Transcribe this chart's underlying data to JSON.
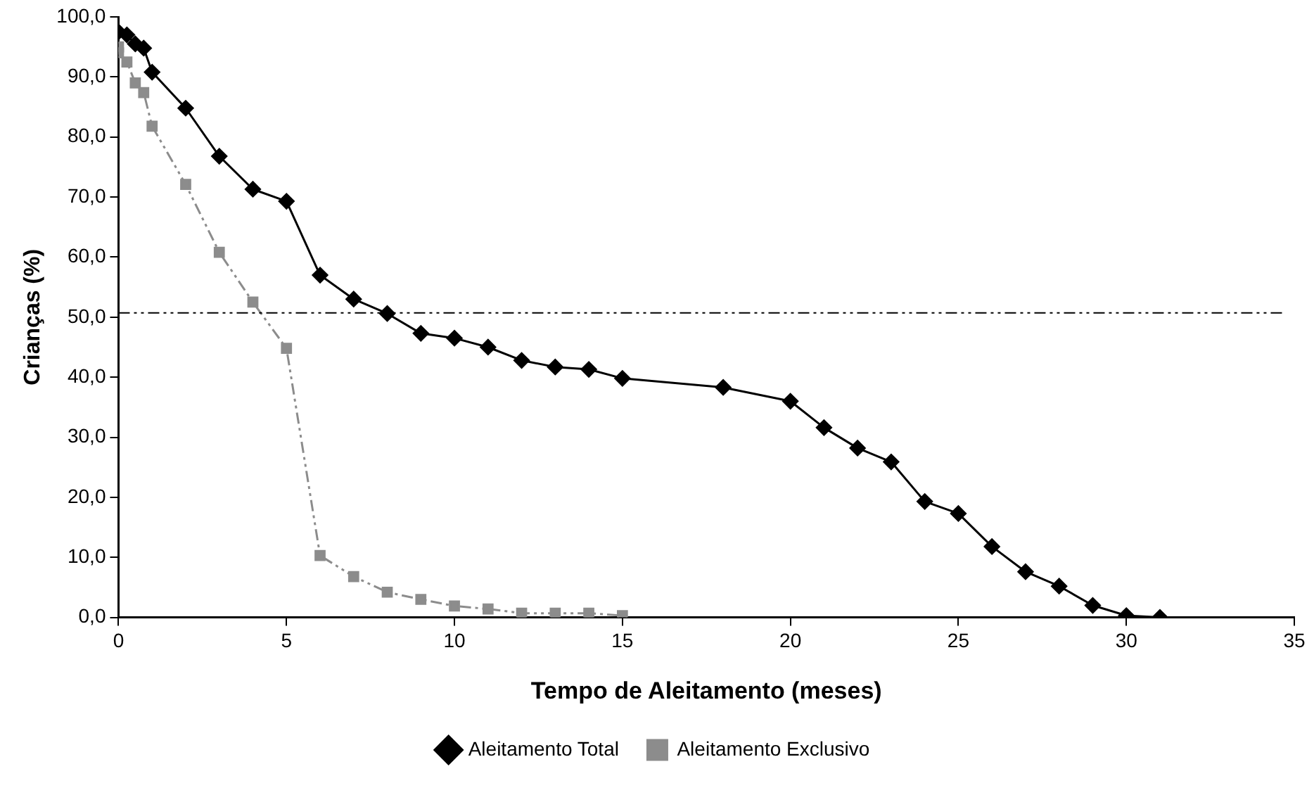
{
  "chart_data": {
    "type": "line",
    "xlabel": "Tempo de Aleitamento (meses)",
    "ylabel": "Crianças (%)",
    "xlim": [
      0,
      35
    ],
    "xticks": [
      0,
      5,
      10,
      15,
      20,
      25,
      30,
      35
    ],
    "ylim": [
      0,
      100
    ],
    "yticks": [
      {
        "value": 0,
        "label": "0,0"
      },
      {
        "value": 10,
        "label": "10,0"
      },
      {
        "value": 20,
        "label": "20,0"
      },
      {
        "value": 30,
        "label": "30,0"
      },
      {
        "value": 40,
        "label": "40,0"
      },
      {
        "value": 50,
        "label": "50,0"
      },
      {
        "value": 60,
        "label": "60,0"
      },
      {
        "value": 70,
        "label": "70,0"
      },
      {
        "value": 80,
        "label": "80,0"
      },
      {
        "value": 90,
        "label": "90,0"
      },
      {
        "value": 100,
        "label": "100,0"
      }
    ],
    "grid": false,
    "legend": "bottom",
    "ref_lines": [
      {
        "axis": "y",
        "value": 50.7,
        "color": "#000000",
        "line_style": "dashed"
      }
    ],
    "series": [
      {
        "name": "Aleitamento Total",
        "color": "#000000",
        "marker": "diamond",
        "line_style": "solid",
        "x": [
          0,
          0.25,
          0.5,
          0.75,
          1,
          2,
          3,
          4,
          5,
          6,
          7,
          8,
          9,
          10,
          11,
          12,
          13,
          14,
          15,
          18,
          20,
          21,
          22,
          23,
          24,
          25,
          26,
          27,
          28,
          29,
          30,
          31
        ],
        "values": [
          97.5,
          97,
          95.5,
          94.8,
          90.8,
          84.8,
          76.8,
          71.3,
          69.3,
          57,
          53,
          50.6,
          47.3,
          46.5,
          45,
          42.8,
          41.7,
          41.3,
          39.8,
          38.3,
          36,
          31.6,
          28.2,
          25.9,
          19.3,
          17.3,
          11.8,
          7.6,
          5.2,
          2,
          0.3,
          0
        ]
      },
      {
        "name": "Aleitamento Exclusivo",
        "color": "#8c8c8c",
        "marker": "square",
        "line_style": "dashed",
        "x": [
          0,
          0,
          0.25,
          0.5,
          0.75,
          1,
          2,
          3,
          4,
          5,
          6,
          7,
          8,
          9,
          10,
          11,
          12,
          13,
          14,
          15
        ],
        "values": [
          95,
          94,
          92.5,
          89,
          87.4,
          81.8,
          72.1,
          60.8,
          52.5,
          44.8,
          10.3,
          6.8,
          4.2,
          3,
          1.9,
          1.4,
          0.7,
          0.7,
          0.7,
          0.3
        ]
      }
    ]
  }
}
